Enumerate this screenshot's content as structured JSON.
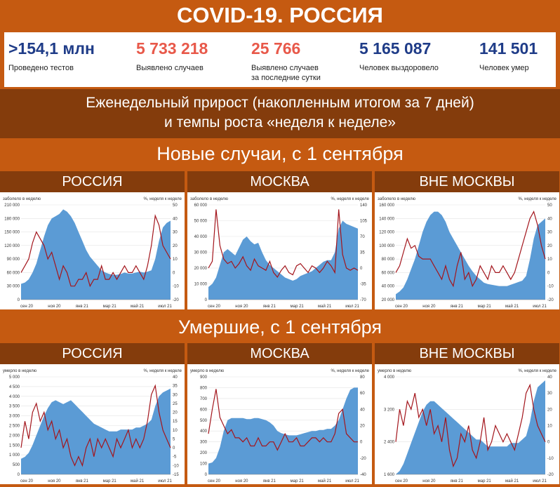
{
  "title": "COVID-19. РОССИЯ",
  "stats": [
    {
      "value": ">154,1 млн",
      "label": "Проведено тестов",
      "color": "#1f3c88"
    },
    {
      "value": "5 733 218",
      "label": "Выявлено случаев",
      "color": "#e8594a"
    },
    {
      "value": "25 766",
      "label": "Выявлено случаев\nза последние сутки",
      "color": "#e8594a"
    },
    {
      "value": "5 165 087",
      "label": "Человек выздоровело",
      "color": "#1f3c88"
    },
    {
      "value": "141 501",
      "label": "Человек умер",
      "color": "#1f3c88"
    }
  ],
  "weekly": {
    "line1": "Еженедельный прирост (накопленным итогом за 7 дней)",
    "line2": "и темпы роста «неделя к неделе»"
  },
  "section_cases": "Новые случаи, с 1 сентября",
  "section_deaths": "Умершие, с 1 сентября",
  "colors": {
    "bar": "#5b9bd5",
    "line": "#a3151c",
    "header": "#843c0c",
    "accent": "#c55a11"
  },
  "chart_data": [
    {
      "type": "area",
      "region": "РОССИЯ",
      "left_label": "заболело в неделю",
      "right_label": "%, неделя к неделе",
      "left_ticks": [
        "0",
        "30 000",
        "60 000",
        "90 000",
        "120 000",
        "150 000",
        "180 000",
        "210 000"
      ],
      "ylim": [
        0,
        210000
      ],
      "right_ticks": [
        "-20",
        "-10",
        "0",
        "10",
        "20",
        "30",
        "40",
        "50"
      ],
      "y2lim": [
        -20,
        50
      ],
      "x_ticks": [
        "сен 20",
        "ноя 20",
        "янв 21",
        "мар 21",
        "май 21",
        "июл 21"
      ],
      "bars": [
        35000,
        38000,
        45000,
        60000,
        80000,
        110000,
        140000,
        165000,
        180000,
        185000,
        190000,
        200000,
        195000,
        185000,
        170000,
        150000,
        130000,
        110000,
        95000,
        85000,
        75000,
        65000,
        60000,
        57000,
        55000,
        55000,
        57000,
        60000,
        58000,
        58000,
        60000,
        62000,
        60000,
        62000,
        65000,
        90000,
        130000,
        160000,
        170000,
        175000
      ],
      "line": [
        0,
        5,
        10,
        22,
        30,
        25,
        20,
        10,
        15,
        5,
        -5,
        5,
        0,
        -10,
        -10,
        -5,
        -5,
        0,
        -10,
        -5,
        -5,
        5,
        -5,
        -5,
        0,
        -5,
        0,
        5,
        0,
        0,
        5,
        0,
        -5,
        5,
        20,
        42,
        35,
        20,
        15,
        10
      ]
    },
    {
      "type": "area",
      "region": "МОСКВА",
      "left_label": "заболело в неделю",
      "right_label": "%, неделя к неделе",
      "left_ticks": [
        "0",
        "10 000",
        "20 000",
        "30 000",
        "40 000",
        "50 000",
        "60 000"
      ],
      "ylim": [
        0,
        60000
      ],
      "right_ticks": [
        "-70",
        "-35",
        "0",
        "35",
        "70",
        "105",
        "140"
      ],
      "y2lim": [
        -70,
        140
      ],
      "x_ticks": [
        "сен 20",
        "ноя 20",
        "янв 21",
        "мар 21",
        "май 21",
        "июл 21"
      ],
      "bars": [
        8000,
        10000,
        14000,
        22000,
        30000,
        32000,
        30000,
        28000,
        33000,
        38000,
        40000,
        37000,
        35000,
        36000,
        30000,
        25000,
        22000,
        20000,
        18000,
        16000,
        14000,
        13000,
        12000,
        13000,
        15000,
        16000,
        17000,
        18000,
        20000,
        22000,
        24000,
        25000,
        25000,
        30000,
        45000,
        50000,
        48000,
        47000,
        46000,
        45000
      ],
      "line": [
        0,
        15,
        130,
        50,
        20,
        10,
        15,
        0,
        10,
        25,
        5,
        -5,
        20,
        5,
        0,
        -5,
        15,
        -10,
        -20,
        -5,
        5,
        -10,
        -15,
        5,
        10,
        0,
        -10,
        5,
        0,
        -10,
        0,
        15,
        5,
        -10,
        130,
        30,
        0,
        -5,
        0,
        -5
      ]
    },
    {
      "type": "area",
      "region": "ВНЕ МОСКВЫ",
      "left_label": "заболело в неделю",
      "right_label": "%, неделя к неделе",
      "left_ticks": [
        "20 000",
        "40 000",
        "60 000",
        "80 000",
        "100 000",
        "120 000",
        "140 000",
        "160 000"
      ],
      "ylim": [
        20000,
        160000
      ],
      "right_ticks": [
        "-20",
        "-10",
        "0",
        "10",
        "20",
        "30",
        "40",
        "50"
      ],
      "y2lim": [
        -20,
        50
      ],
      "x_ticks": [
        "сен 20",
        "ноя 20",
        "янв 21",
        "мар 21",
        "май 21",
        "июл 21"
      ],
      "bars": [
        28000,
        32000,
        38000,
        50000,
        65000,
        80000,
        100000,
        120000,
        135000,
        145000,
        150000,
        150000,
        145000,
        135000,
        120000,
        110000,
        100000,
        90000,
        80000,
        70000,
        62000,
        55000,
        50000,
        45000,
        43000,
        42000,
        41000,
        40000,
        40000,
        40000,
        42000,
        44000,
        46000,
        48000,
        55000,
        80000,
        110000,
        130000,
        135000,
        140000
      ],
      "line": [
        0,
        5,
        15,
        25,
        18,
        20,
        12,
        10,
        10,
        10,
        5,
        0,
        -5,
        5,
        -5,
        -10,
        5,
        15,
        -5,
        0,
        -10,
        -5,
        5,
        0,
        -5,
        5,
        0,
        0,
        5,
        0,
        -5,
        0,
        10,
        20,
        30,
        40,
        45,
        35,
        20,
        10
      ]
    },
    {
      "type": "area",
      "region": "РОССИЯ",
      "left_label": "умерло в неделю",
      "right_label": "%, неделя к неделе",
      "left_ticks": [
        "0",
        "500",
        "1 000",
        "1 500",
        "2 000",
        "2 500",
        "3 000",
        "3 500",
        "4 000",
        "4 500",
        "5 000"
      ],
      "ylim": [
        0,
        5000
      ],
      "right_ticks": [
        "-15",
        "-10",
        "-5",
        "0",
        "5",
        "10",
        "15",
        "20",
        "25",
        "30",
        "35",
        "40"
      ],
      "y2lim": [
        -15,
        40
      ],
      "x_ticks": [
        "сен 20",
        "ноя 20",
        "янв 21",
        "мар 21",
        "май 21",
        "июл 21"
      ],
      "bars": [
        800,
        900,
        1100,
        1500,
        2000,
        2500,
        3000,
        3400,
        3700,
        3800,
        3700,
        3600,
        3700,
        3800,
        3600,
        3400,
        3200,
        3000,
        2800,
        2600,
        2500,
        2400,
        2300,
        2200,
        2200,
        2200,
        2300,
        2300,
        2300,
        2300,
        2400,
        2400,
        2500,
        2600,
        2800,
        3500,
        4000,
        4200,
        4300,
        4400
      ],
      "line": [
        0,
        15,
        5,
        20,
        25,
        15,
        20,
        10,
        15,
        5,
        10,
        0,
        5,
        -5,
        -10,
        -5,
        -10,
        0,
        5,
        -5,
        5,
        0,
        5,
        0,
        -5,
        5,
        0,
        5,
        10,
        0,
        5,
        0,
        5,
        15,
        30,
        35,
        20,
        10,
        5,
        0
      ]
    },
    {
      "type": "area",
      "region": "МОСКВА",
      "left_label": "умерло в неделю",
      "right_label": "%, неделя к неделе",
      "left_ticks": [
        "0",
        "100",
        "200",
        "300",
        "400",
        "500",
        "600",
        "700",
        "800",
        "900"
      ],
      "ylim": [
        0,
        900
      ],
      "right_ticks": [
        "-40",
        "-20",
        "0",
        "20",
        "40",
        "60",
        "80"
      ],
      "y2lim": [
        -40,
        80
      ],
      "x_ticks": [
        "сен 20",
        "ноя 20",
        "янв 21",
        "мар 21",
        "май 21",
        "июл 21"
      ],
      "bars": [
        100,
        110,
        150,
        250,
        400,
        500,
        520,
        520,
        520,
        520,
        510,
        510,
        520,
        520,
        510,
        500,
        480,
        450,
        400,
        380,
        370,
        360,
        360,
        360,
        370,
        380,
        390,
        400,
        400,
        410,
        410,
        420,
        420,
        450,
        500,
        600,
        700,
        780,
        800,
        800
      ],
      "line": [
        10,
        40,
        65,
        30,
        20,
        10,
        15,
        5,
        5,
        0,
        5,
        -5,
        -5,
        5,
        -5,
        -5,
        0,
        0,
        -10,
        0,
        10,
        0,
        0,
        5,
        -5,
        -5,
        0,
        5,
        5,
        0,
        5,
        0,
        0,
        10,
        35,
        40,
        10,
        5,
        0,
        0
      ]
    },
    {
      "type": "area",
      "region": "ВНЕ МОСКВЫ",
      "left_label": "умерло в неделю",
      "right_label": "%, неделя к неделе",
      "left_ticks": [
        "1 600",
        "2 400",
        "3 200",
        "4 000"
      ],
      "ylim": [
        1200,
        4000
      ],
      "right_ticks": [
        "-20",
        "-10",
        "0",
        "10",
        "20",
        "30",
        "40"
      ],
      "y2lim": [
        -20,
        40
      ],
      "x_ticks": [
        "сен 20",
        "ноя 20",
        "янв 21",
        "мар 21",
        "май 21",
        "июл 21"
      ],
      "bars": [
        1200,
        1300,
        1500,
        1800,
        2100,
        2400,
        2700,
        3000,
        3200,
        3300,
        3300,
        3200,
        3100,
        3000,
        2900,
        2800,
        2700,
        2600,
        2500,
        2400,
        2300,
        2200,
        2200,
        2100,
        2000,
        2000,
        2000,
        2000,
        2000,
        2000,
        2100,
        2100,
        2100,
        2200,
        2300,
        2700,
        3300,
        3700,
        3800,
        3900
      ],
      "line": [
        0,
        20,
        10,
        25,
        20,
        30,
        15,
        20,
        10,
        20,
        5,
        10,
        0,
        15,
        -5,
        -15,
        -10,
        5,
        0,
        10,
        -5,
        -10,
        0,
        15,
        -5,
        0,
        10,
        5,
        0,
        5,
        0,
        -5,
        5,
        15,
        30,
        35,
        20,
        10,
        5,
        0
      ]
    }
  ]
}
